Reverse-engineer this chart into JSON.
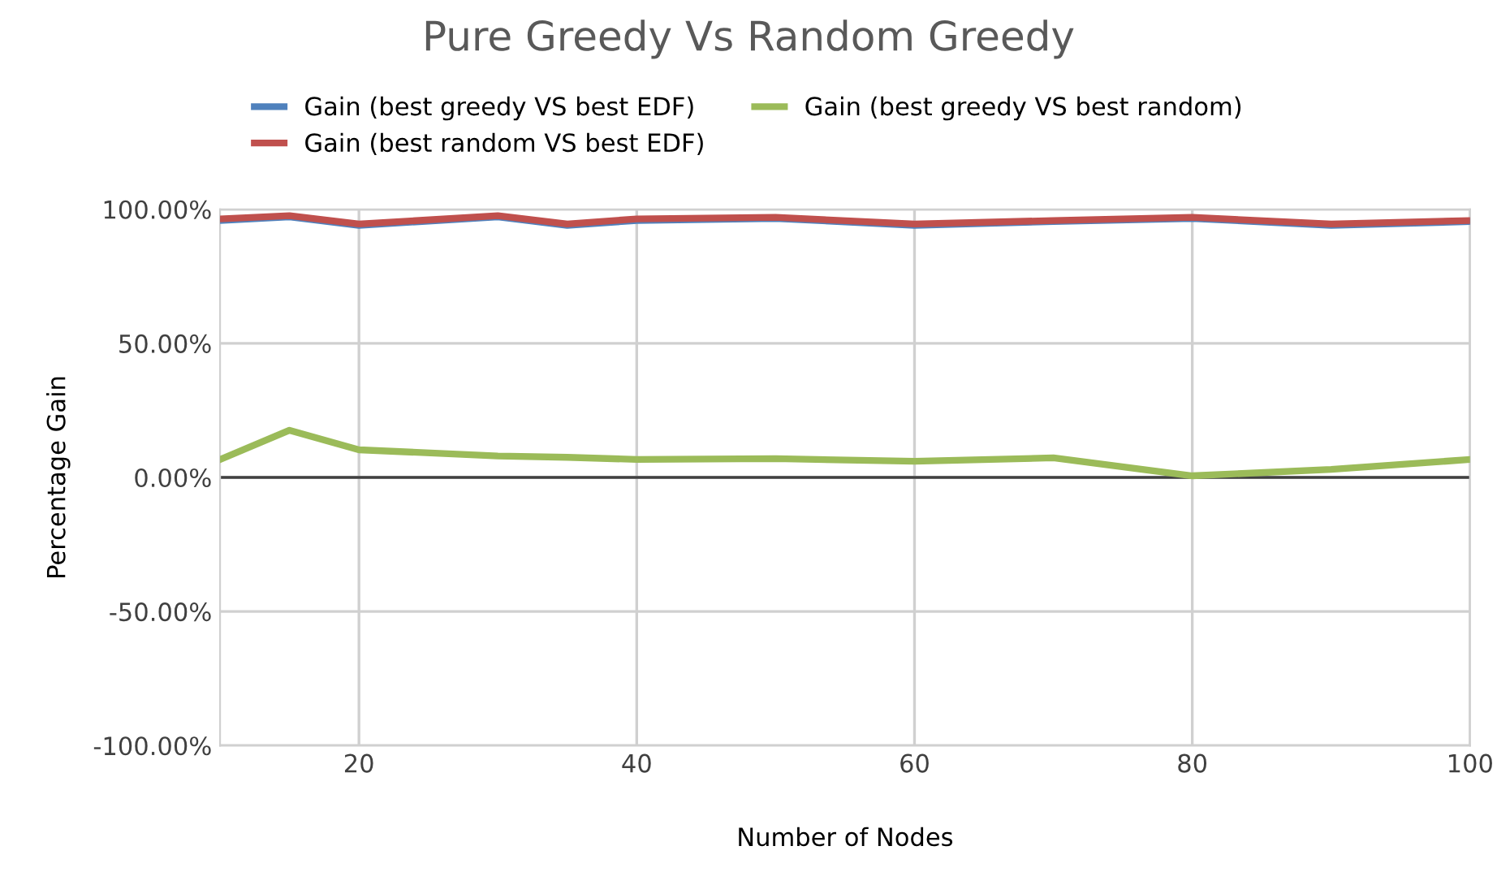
{
  "chart_data": {
    "type": "line",
    "title": "Pure Greedy Vs Random Greedy",
    "xlabel": "Number of Nodes",
    "ylabel": "Percentage Gain",
    "x": [
      10,
      15,
      20,
      30,
      35,
      40,
      50,
      60,
      70,
      80,
      90,
      100
    ],
    "series": [
      {
        "name": "Gain (best greedy VS best EDF)",
        "color": "#4f81bd",
        "values": [
          95.8,
          97.2,
          94.0,
          97.2,
          94.0,
          95.8,
          96.6,
          94.0,
          95.4,
          96.6,
          94.0,
          95.4
        ]
      },
      {
        "name": "Gain (best random VS best EDF)",
        "color": "#c0504d",
        "values": [
          96.4,
          97.6,
          94.5,
          97.6,
          94.5,
          96.4,
          97.0,
          94.5,
          95.8,
          97.0,
          94.5,
          95.8
        ]
      },
      {
        "name": "Gain (best greedy VS best random)",
        "color": "#9bbb59",
        "values": [
          6.7,
          17.6,
          10.3,
          8.0,
          7.5,
          6.7,
          7.0,
          6.0,
          7.3,
          0.6,
          3.0,
          6.7
        ]
      }
    ],
    "xlim": [
      10,
      100
    ],
    "xticks": [
      20,
      40,
      60,
      80,
      100
    ],
    "ylim": [
      -100,
      100
    ],
    "yticks": [
      {
        "value": -100,
        "label": "-100.00%"
      },
      {
        "value": -50,
        "label": "-50.00%"
      },
      {
        "value": 0,
        "label": "0.00%"
      },
      {
        "value": 50,
        "label": "50.00%"
      },
      {
        "value": 100,
        "label": "100.00%"
      }
    ],
    "ref_lines": [
      {
        "axis": "y",
        "value": 0,
        "color": "#404040"
      }
    ],
    "grid": true,
    "legend": "top",
    "marker": "none",
    "line_style": "solid"
  }
}
